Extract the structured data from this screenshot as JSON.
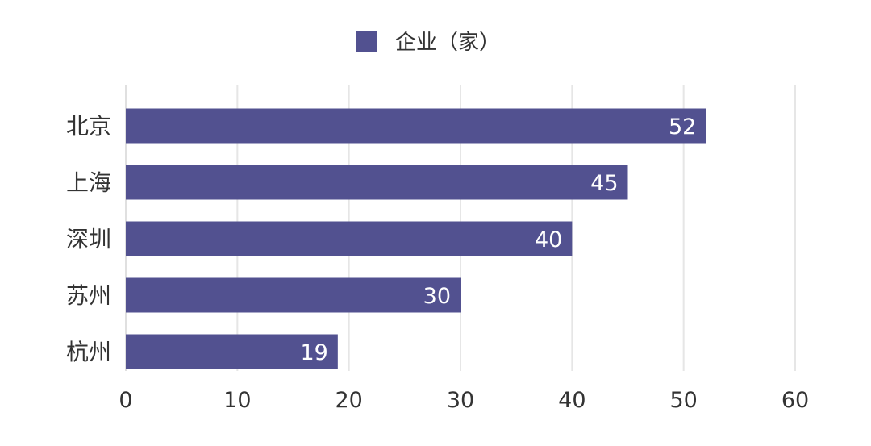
{
  "chart_data": {
    "type": "bar",
    "orientation": "horizontal",
    "categories": [
      "北京",
      "上海",
      "深圳",
      "苏州",
      "杭州"
    ],
    "series": [
      {
        "name": "企业（家）",
        "values": [
          52,
          45,
          40,
          30,
          19
        ],
        "color": "#525190"
      }
    ],
    "xlim": [
      0,
      60
    ],
    "x_ticks": [
      0,
      10,
      20,
      30,
      40,
      50,
      60
    ],
    "grid": true,
    "legend_position": "top-center",
    "data_labels": true
  }
}
